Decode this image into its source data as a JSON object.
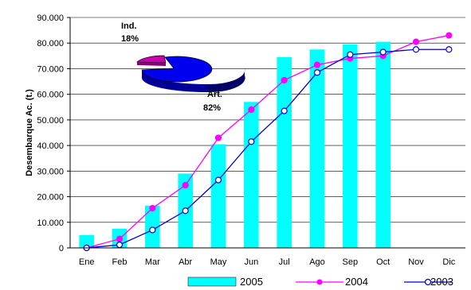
{
  "chart_data": {
    "type": "bar+line",
    "ylabel": "Desembarque Ac. (t.)",
    "ylim": [
      0,
      90000
    ],
    "yticks": [
      "0",
      "10.000",
      "20.000",
      "30.000",
      "40.000",
      "50.000",
      "60.000",
      "70.000",
      "80.000",
      "90.000"
    ],
    "ytick_values": [
      0,
      10000,
      20000,
      30000,
      40000,
      50000,
      60000,
      70000,
      80000,
      90000
    ],
    "categories": [
      "Ene",
      "Feb",
      "Mar",
      "Abr",
      "May",
      "Jun",
      "Jul",
      "Ago",
      "Sep",
      "Oct",
      "Nov",
      "Dic"
    ],
    "grid": true,
    "legend_position": "bottom",
    "series": [
      {
        "name": "2005",
        "kind": "bar",
        "color": "#00ffff",
        "values": [
          5000,
          7500,
          16500,
          29000,
          40500,
          57000,
          74500,
          77500,
          79500,
          80500,
          null,
          null
        ]
      },
      {
        "name": "2004",
        "kind": "line",
        "color": "#ff00ff",
        "marker": "filled-circle",
        "values": [
          0,
          3500,
          15500,
          24500,
          43000,
          54000,
          65500,
          71500,
          74000,
          75000,
          80500,
          83000
        ]
      },
      {
        "name": "2003",
        "kind": "line",
        "color": "#0000cc",
        "marker": "open-circle",
        "values": [
          0,
          1200,
          7000,
          14500,
          26500,
          41500,
          53500,
          68500,
          75500,
          76500,
          77500,
          77500
        ]
      }
    ],
    "inset_pie": {
      "slices": [
        {
          "label": "Ind.",
          "value_label": "18%",
          "value": 18,
          "color": "#cc00aa"
        },
        {
          "label": "Art.",
          "value_label": "82%",
          "value": 82,
          "color": "#0000ee"
        }
      ]
    }
  }
}
